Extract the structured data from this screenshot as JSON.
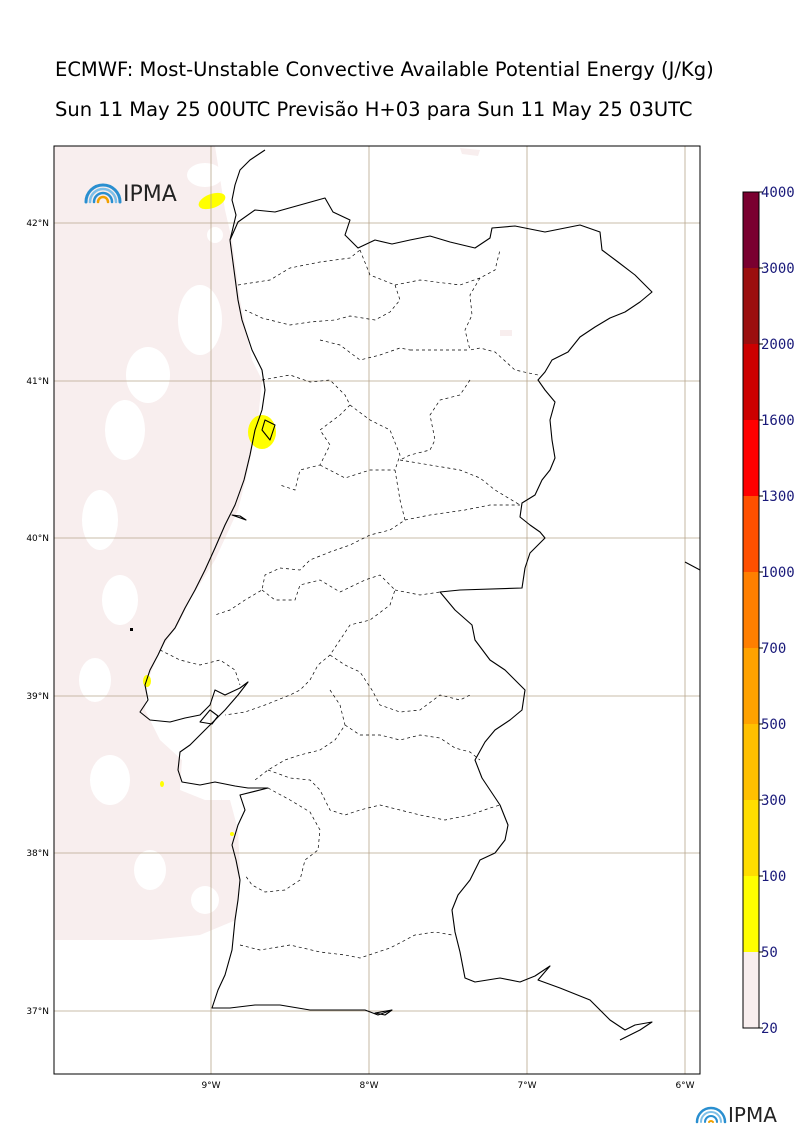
{
  "title": {
    "line1": "ECMWF: Most-Unstable Convective Available Potential Energy (J/Kg)",
    "line2": "Sun 11 May 25 00UTC Previsão H+03 para Sun 11 May 25 03UTC"
  },
  "map": {
    "region": "Portugal (mainland)",
    "lat_labels": [
      "42°N",
      "41°N",
      "40°N",
      "39°N",
      "38°N",
      "37°N"
    ],
    "lon_labels": [
      "9°W",
      "8°W",
      "7°W",
      "6°W"
    ],
    "logo_text": "IPMA"
  },
  "colorbar": {
    "levels": [
      "20",
      "50",
      "100",
      "300",
      "500",
      "700",
      "1000",
      "1300",
      "1600",
      "2000",
      "3000",
      "4000"
    ],
    "colors": [
      "#f8eeee",
      "#ffff00",
      "#ffdd00",
      "#ffc000",
      "#ffa200",
      "#ff7f00",
      "#ff5000",
      "#ff0000",
      "#cc0000",
      "#9b0f0f",
      "#7a0030",
      "#5a1000"
    ]
  },
  "footer_logo_text": "IPMA"
}
